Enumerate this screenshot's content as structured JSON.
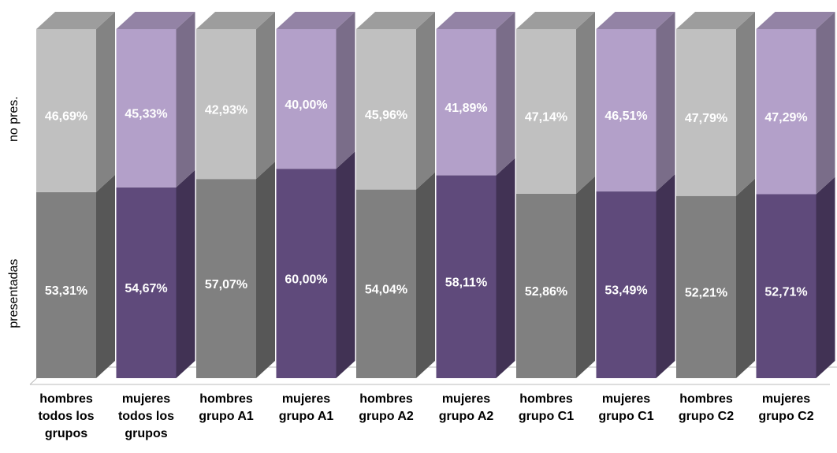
{
  "chart_data": {
    "type": "stacked-bar-3d",
    "categories": [
      "hombres todos los grupos",
      "mujeres todos los grupos",
      "hombres grupo A1",
      "mujeres grupo A1",
      "hombres grupo A2",
      "mujeres grupo A2",
      "hombres grupo C1",
      "mujeres grupo C1",
      "hombres grupo C2",
      "mujeres grupo C2"
    ],
    "series": [
      {
        "name": "presentadas",
        "colors": [
          "#808080",
          "#5f4a7b",
          "#808080",
          "#5f4a7b",
          "#808080",
          "#5f4a7b",
          "#808080",
          "#5f4a7b",
          "#808080",
          "#5f4a7b"
        ],
        "values": [
          53.31,
          54.67,
          57.07,
          60.0,
          54.04,
          58.11,
          52.86,
          53.49,
          52.21,
          52.71
        ],
        "value_labels": [
          "53,31%",
          "54,67%",
          "57,07%",
          "60,00%",
          "54,04%",
          "58,11%",
          "52,86%",
          "53,49%",
          "52,21%",
          "52,71%"
        ]
      },
      {
        "name": "no pres.",
        "colors": [
          "#c0c0c0",
          "#b3a0c9",
          "#c0c0c0",
          "#b3a0c9",
          "#c0c0c0",
          "#b3a0c9",
          "#c0c0c0",
          "#b3a0c9",
          "#c0c0c0",
          "#b3a0c9"
        ],
        "values": [
          46.69,
          45.33,
          42.93,
          40.0,
          45.96,
          41.89,
          47.14,
          46.51,
          47.79,
          47.29
        ],
        "value_labels": [
          "46,69%",
          "45,33%",
          "42,93%",
          "40,00%",
          "45,96%",
          "41,89%",
          "47,14%",
          "46,51%",
          "47,79%",
          "47,29%"
        ]
      }
    ],
    "ylim": [
      0,
      100
    ]
  }
}
